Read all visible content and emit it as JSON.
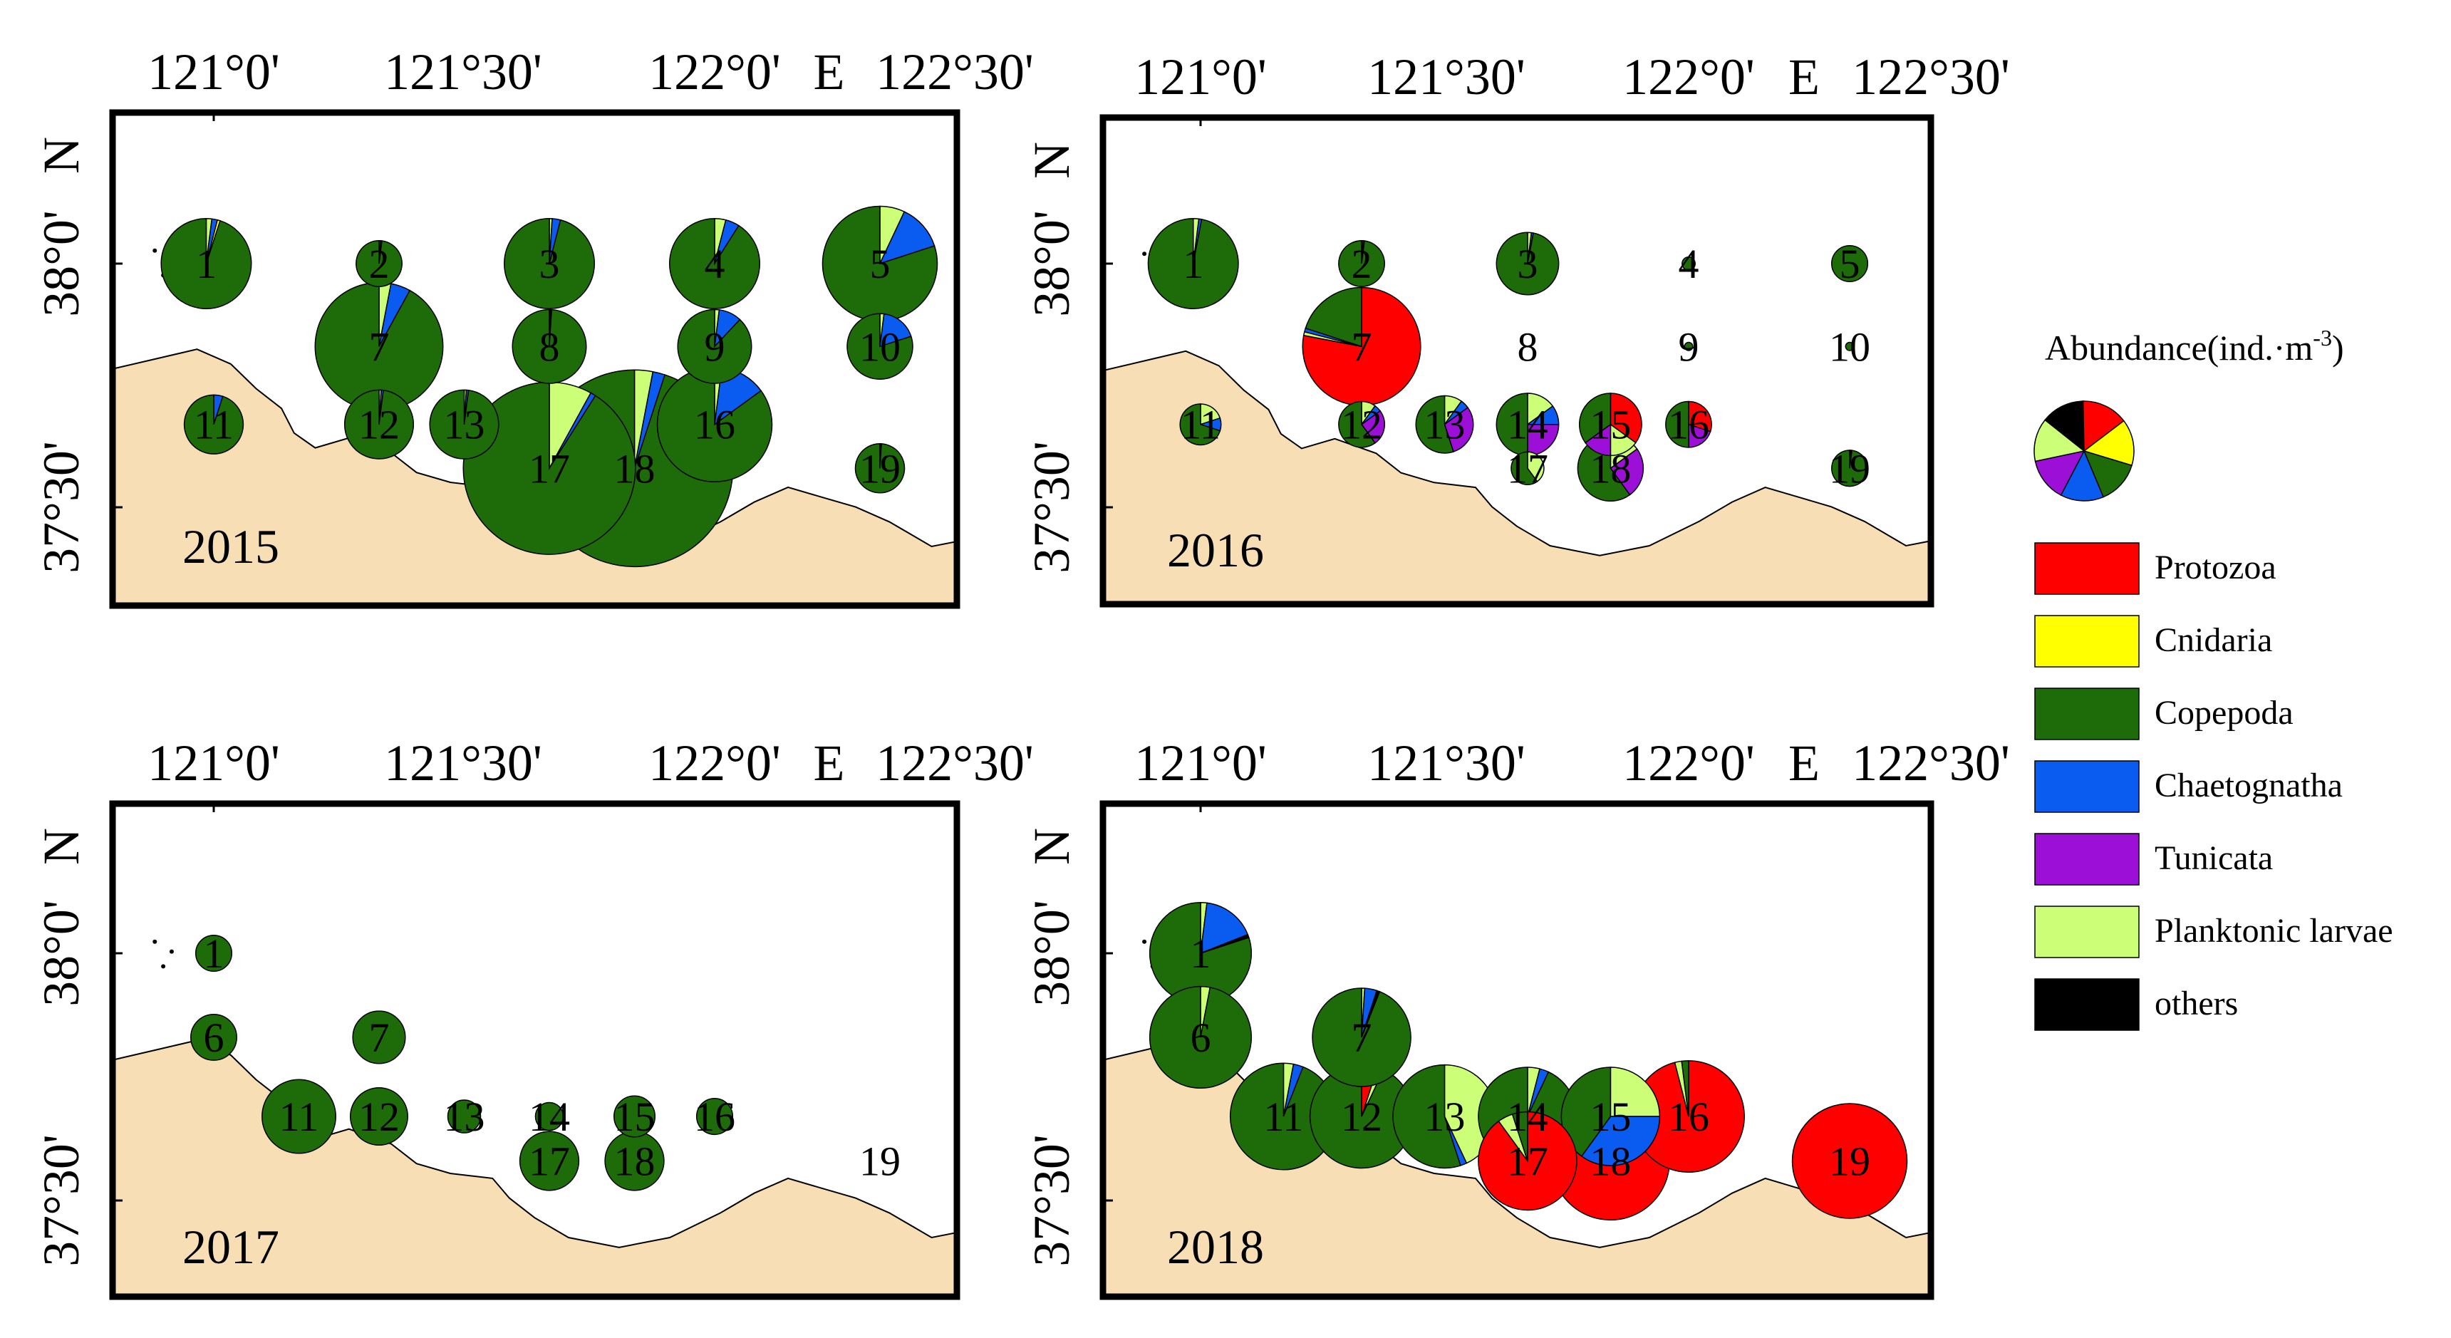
{
  "chart_data": {
    "type": "pie-map",
    "lon_ticks": [
      "121°0'",
      "121°30'",
      "122°0'",
      "122°30'"
    ],
    "lon_unit": "E",
    "lat_ticks": [
      "38°0'",
      "37°30'"
    ],
    "lat_unit": "N",
    "legend": {
      "title": "Abundance(ind.·m",
      "title_sup": "-3",
      "title_close": ")",
      "categories": [
        {
          "name": "Protozoa",
          "color": "#ff0000"
        },
        {
          "name": "Cnidaria",
          "color": "#ffff00"
        },
        {
          "name": "Copepoda",
          "color": "#1e6b0a"
        },
        {
          "name": "Chaetognatha",
          "color": "#0a5cf0"
        },
        {
          "name": "Tunicata",
          "color": "#9b0fd6"
        },
        {
          "name": "Planktonic larvae",
          "color": "#ccff77"
        },
        {
          "name": "others",
          "color": "#000000"
        }
      ],
      "example_fractions": [
        0.15,
        0.15,
        0.14,
        0.14,
        0.14,
        0.14,
        0.14
      ]
    },
    "panels": [
      {
        "year": "2015",
        "stations": [
          {
            "id": "1",
            "lon": 120.985,
            "lat": 38.0,
            "size": 0.55,
            "fracs": [
              0,
              0.01,
              0.95,
              0.02,
              0,
              0.02,
              0
            ]
          },
          {
            "id": "2",
            "lon": 121.33,
            "lat": 38.0,
            "size": 0.28,
            "fracs": [
              0,
              0,
              0.98,
              0.01,
              0,
              0.01,
              0
            ]
          },
          {
            "id": "3",
            "lon": 121.67,
            "lat": 38.0,
            "size": 0.55,
            "fracs": [
              0,
              0,
              0.96,
              0.03,
              0,
              0.01,
              0
            ]
          },
          {
            "id": "4",
            "lon": 122.0,
            "lat": 38.0,
            "size": 0.55,
            "fracs": [
              0,
              0,
              0.91,
              0.05,
              0,
              0.04,
              0
            ]
          },
          {
            "id": "5",
            "lon": 122.33,
            "lat": 38.0,
            "size": 0.7,
            "fracs": [
              0,
              0,
              0.8,
              0.13,
              0,
              0.07,
              0
            ]
          },
          {
            "id": "7",
            "lon": 121.33,
            "lat": 37.83,
            "size": 0.78,
            "fracs": [
              0,
              0,
              0.92,
              0.05,
              0,
              0.03,
              0
            ]
          },
          {
            "id": "8",
            "lon": 121.67,
            "lat": 37.83,
            "size": 0.45,
            "fracs": [
              0,
              0,
              0.99,
              0.005,
              0,
              0.005,
              0
            ]
          },
          {
            "id": "9",
            "lon": 122.0,
            "lat": 37.83,
            "size": 0.45,
            "fracs": [
              0,
              0,
              0.88,
              0.1,
              0,
              0.02,
              0
            ]
          },
          {
            "id": "10",
            "lon": 122.33,
            "lat": 37.83,
            "size": 0.4,
            "fracs": [
              0,
              0,
              0.8,
              0.18,
              0,
              0.02,
              0
            ]
          },
          {
            "id": "11",
            "lon": 121.0,
            "lat": 37.67,
            "size": 0.36,
            "fracs": [
              0,
              0,
              0.95,
              0.05,
              0,
              0,
              0
            ]
          },
          {
            "id": "12",
            "lon": 121.33,
            "lat": 37.67,
            "size": 0.42,
            "fracs": [
              0,
              0,
              0.98,
              0.01,
              0,
              0.01,
              0
            ]
          },
          {
            "id": "13",
            "lon": 121.5,
            "lat": 37.67,
            "size": 0.42,
            "fracs": [
              0,
              0,
              0.98,
              0.01,
              0,
              0.01,
              0
            ]
          },
          {
            "id": "16",
            "lon": 122.0,
            "lat": 37.67,
            "size": 0.7,
            "fracs": [
              0,
              0,
              0.85,
              0.13,
              0,
              0.02,
              0
            ]
          },
          {
            "id": "17",
            "lon": 121.67,
            "lat": 37.58,
            "size": 1.05,
            "fracs": [
              0,
              0,
              0.91,
              0.01,
              0,
              0.08,
              0
            ]
          },
          {
            "id": "18",
            "lon": 121.84,
            "lat": 37.58,
            "size": 1.2,
            "fracs": [
              0,
              0,
              0.95,
              0.02,
              0,
              0.03,
              0
            ]
          },
          {
            "id": "19",
            "lon": 122.33,
            "lat": 37.58,
            "size": 0.3,
            "fracs": [
              0,
              0,
              0.99,
              0.005,
              0,
              0.005,
              0
            ]
          }
        ]
      },
      {
        "year": "2016",
        "stations": [
          {
            "id": "1",
            "lon": 120.985,
            "lat": 38.0,
            "size": 0.55,
            "fracs": [
              0,
              0,
              0.97,
              0.01,
              0,
              0.02,
              0
            ]
          },
          {
            "id": "2",
            "lon": 121.33,
            "lat": 38.0,
            "size": 0.28,
            "fracs": [
              0,
              0,
              0.98,
              0.01,
              0,
              0.01,
              0
            ]
          },
          {
            "id": "3",
            "lon": 121.67,
            "lat": 38.0,
            "size": 0.38,
            "fracs": [
              0,
              0,
              0.97,
              0.01,
              0,
              0.02,
              0
            ]
          },
          {
            "id": "4",
            "lon": 122.0,
            "lat": 38.0,
            "size": 0.08,
            "fracs": [
              0,
              0,
              1,
              0,
              0,
              0,
              0
            ]
          },
          {
            "id": "5",
            "lon": 122.33,
            "lat": 38.0,
            "size": 0.22,
            "fracs": [
              0,
              0,
              1,
              0,
              0,
              0,
              0
            ]
          },
          {
            "id": "7",
            "lon": 121.33,
            "lat": 37.83,
            "size": 0.72,
            "fracs": [
              0.78,
              0,
              0.2,
              0.01,
              0,
              0.01,
              0
            ]
          },
          {
            "id": "8",
            "lon": 121.67,
            "lat": 37.83,
            "size": 0,
            "fracs": [
              0,
              0,
              1,
              0,
              0,
              0,
              0
            ]
          },
          {
            "id": "9",
            "lon": 122.0,
            "lat": 37.83,
            "size": 0.05,
            "fracs": [
              0,
              0,
              1,
              0,
              0,
              0,
              0
            ]
          },
          {
            "id": "10",
            "lon": 122.33,
            "lat": 37.83,
            "size": 0.05,
            "fracs": [
              0,
              0,
              1,
              0,
              0,
              0,
              0
            ]
          },
          {
            "id": "11",
            "lon": 121.0,
            "lat": 37.67,
            "size": 0.25,
            "fracs": [
              0,
              0,
              0.7,
              0.1,
              0,
              0.2,
              0
            ]
          },
          {
            "id": "12",
            "lon": 121.33,
            "lat": 37.67,
            "size": 0.28,
            "fracs": [
              0,
              0,
              0.6,
              0.05,
              0.25,
              0.1,
              0
            ]
          },
          {
            "id": "13",
            "lon": 121.5,
            "lat": 37.67,
            "size": 0.35,
            "fracs": [
              0,
              0,
              0.55,
              0.05,
              0.3,
              0.1,
              0
            ]
          },
          {
            "id": "14",
            "lon": 121.67,
            "lat": 37.67,
            "size": 0.38,
            "fracs": [
              0,
              0,
              0.5,
              0.1,
              0.25,
              0.15,
              0
            ]
          },
          {
            "id": "15",
            "lon": 121.84,
            "lat": 37.67,
            "size": 0.38,
            "fracs": [
              0.35,
              0,
              0.35,
              0,
              0.15,
              0.15,
              0
            ]
          },
          {
            "id": "16",
            "lon": 122.0,
            "lat": 37.67,
            "size": 0.28,
            "fracs": [
              0.3,
              0,
              0.5,
              0,
              0.2,
              0,
              0
            ]
          },
          {
            "id": "17",
            "lon": 121.67,
            "lat": 37.58,
            "size": 0.2,
            "fracs": [
              0,
              0,
              0.6,
              0,
              0,
              0.4,
              0
            ]
          },
          {
            "id": "18",
            "lon": 121.84,
            "lat": 37.58,
            "size": 0.4,
            "fracs": [
              0,
              0,
              0.6,
              0,
              0.25,
              0.15,
              0
            ]
          },
          {
            "id": "19",
            "lon": 122.33,
            "lat": 37.58,
            "size": 0.22,
            "fracs": [
              0,
              0,
              0.98,
              0.01,
              0,
              0.01,
              0
            ]
          }
        ]
      },
      {
        "year": "2017",
        "stations": [
          {
            "id": "1",
            "lon": 121.0,
            "lat": 38.0,
            "size": 0.22,
            "fracs": [
              0,
              0,
              1,
              0,
              0,
              0,
              0
            ]
          },
          {
            "id": "6",
            "lon": 121.0,
            "lat": 37.83,
            "size": 0.28,
            "fracs": [
              0,
              0,
              1,
              0,
              0,
              0,
              0
            ]
          },
          {
            "id": "7",
            "lon": 121.33,
            "lat": 37.83,
            "size": 0.32,
            "fracs": [
              0,
              0,
              1,
              0,
              0,
              0,
              0
            ]
          },
          {
            "id": "11",
            "lon": 121.17,
            "lat": 37.67,
            "size": 0.45,
            "fracs": [
              0,
              0,
              1,
              0,
              0,
              0,
              0
            ]
          },
          {
            "id": "12",
            "lon": 121.33,
            "lat": 37.67,
            "size": 0.35,
            "fracs": [
              0,
              0,
              1,
              0,
              0,
              0,
              0
            ]
          },
          {
            "id": "13",
            "lon": 121.5,
            "lat": 37.67,
            "size": 0.2,
            "fracs": [
              0,
              0,
              1,
              0,
              0,
              0,
              0
            ]
          },
          {
            "id": "14",
            "lon": 121.67,
            "lat": 37.67,
            "size": 0.17,
            "fracs": [
              0,
              0,
              1,
              0,
              0,
              0,
              0
            ]
          },
          {
            "id": "15",
            "lon": 121.84,
            "lat": 37.67,
            "size": 0.25,
            "fracs": [
              0,
              0,
              1,
              0,
              0,
              0,
              0
            ]
          },
          {
            "id": "16",
            "lon": 122.0,
            "lat": 37.67,
            "size": 0.22,
            "fracs": [
              0,
              0,
              1,
              0,
              0,
              0,
              0
            ]
          },
          {
            "id": "17",
            "lon": 121.67,
            "lat": 37.58,
            "size": 0.36,
            "fracs": [
              0,
              0,
              1,
              0,
              0,
              0,
              0
            ]
          },
          {
            "id": "18",
            "lon": 121.84,
            "lat": 37.58,
            "size": 0.36,
            "fracs": [
              0,
              0,
              1,
              0,
              0,
              0,
              0
            ]
          },
          {
            "id": "19",
            "lon": 122.33,
            "lat": 37.58,
            "size": 0,
            "fracs": [
              0,
              0,
              1,
              0,
              0,
              0,
              0
            ]
          }
        ]
      },
      {
        "year": "2018",
        "stations": [
          {
            "id": "1",
            "lon": 121.0,
            "lat": 38.0,
            "size": 0.62,
            "fracs": [
              0,
              0,
              0.8,
              0.17,
              0,
              0.02,
              0.01
            ]
          },
          {
            "id": "6",
            "lon": 121.0,
            "lat": 37.83,
            "size": 0.62,
            "fracs": [
              0,
              0,
              0.97,
              0,
              0,
              0.03,
              0
            ]
          },
          {
            "id": "7",
            "lon": 121.33,
            "lat": 37.83,
            "size": 0.6,
            "fracs": [
              0,
              0,
              0.94,
              0.04,
              0,
              0.01,
              0.01
            ]
          },
          {
            "id": "11",
            "lon": 121.17,
            "lat": 37.67,
            "size": 0.65,
            "fracs": [
              0,
              0,
              0.94,
              0.03,
              0,
              0.03,
              0
            ]
          },
          {
            "id": "12",
            "lon": 121.33,
            "lat": 37.67,
            "size": 0.63,
            "fracs": [
              0.05,
              0,
              0.93,
              0,
              0,
              0.02,
              0
            ]
          },
          {
            "id": "13",
            "lon": 121.5,
            "lat": 37.67,
            "size": 0.63,
            "fracs": [
              0,
              0,
              0.55,
              0.02,
              0,
              0.43,
              0
            ]
          },
          {
            "id": "14",
            "lon": 121.67,
            "lat": 37.67,
            "size": 0.6,
            "fracs": [
              0,
              0,
              0.93,
              0.03,
              0,
              0.04,
              0
            ]
          },
          {
            "id": "15",
            "lon": 121.84,
            "lat": 37.67,
            "size": 0.6,
            "fracs": [
              0,
              0,
              0.4,
              0.35,
              0,
              0.25,
              0
            ]
          },
          {
            "id": "16",
            "lon": 122.0,
            "lat": 37.67,
            "size": 0.68,
            "fracs": [
              0.96,
              0,
              0.02,
              0,
              0,
              0.02,
              0
            ]
          },
          {
            "id": "17",
            "lon": 121.67,
            "lat": 37.58,
            "size": 0.6,
            "fracs": [
              0.9,
              0,
              0.05,
              0,
              0,
              0.05,
              0
            ]
          },
          {
            "id": "18",
            "lon": 121.84,
            "lat": 37.58,
            "size": 0.72,
            "fracs": [
              0.9,
              0,
              0.05,
              0,
              0,
              0.05,
              0
            ]
          },
          {
            "id": "19",
            "lon": 122.33,
            "lat": 37.58,
            "size": 0.7,
            "fracs": [
              1,
              0,
              0,
              0,
              0,
              0,
              0
            ]
          }
        ]
      }
    ]
  }
}
